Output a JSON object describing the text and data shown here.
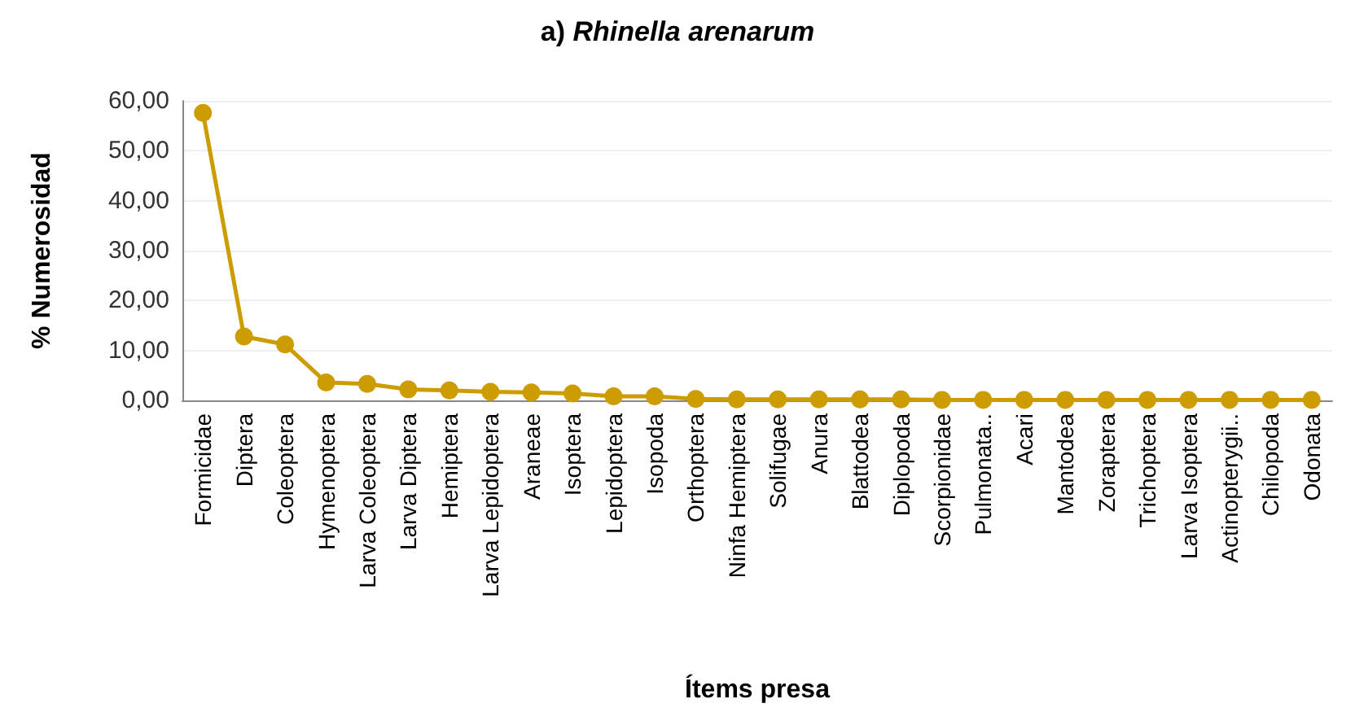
{
  "chart_data": {
    "type": "line",
    "title": "a) Rhinella arenarum",
    "xlabel": "Ítems presa",
    "ylabel": "% Numerosidad",
    "categories": [
      "Formicidae",
      "Diptera",
      "Coleoptera",
      "Hymenoptera",
      "Larva Coleoptera",
      "Larva Diptera",
      "Hemiptera",
      "Larva Lepidoptera",
      "Araneae",
      "Isoptera",
      "Lepidoptera",
      "Isopoda",
      "Orthoptera",
      "Ninfa Hemiptera",
      "Solifugae",
      "Anura",
      "Blattodea",
      "Diplopoda",
      "Scorpionidae",
      "Pulmonata..",
      "Acari",
      "Mantodea",
      "Zoraptera",
      "Trichoptera",
      "Larva Isoptera",
      "Actinopterygii..",
      "Chilopoda",
      "Odonata"
    ],
    "series": [
      {
        "color": "#cc9c00",
        "values": [
          57.6,
          12.8,
          11.2,
          3.6,
          3.3,
          2.2,
          2.0,
          1.7,
          1.6,
          1.4,
          0.8,
          0.8,
          0.3,
          0.2,
          0.2,
          0.2,
          0.2,
          0.2,
          0.1,
          0.1,
          0.1,
          0.1,
          0.1,
          0.1,
          0.1,
          0.1,
          0.1,
          0.1
        ]
      }
    ],
    "ylim": [
      0,
      60
    ],
    "yticks": [
      {
        "value": 0,
        "label": "0,00"
      },
      {
        "value": 10,
        "label": "10,00"
      },
      {
        "value": 20,
        "label": "20,00"
      },
      {
        "value": 30,
        "label": "30,00"
      },
      {
        "value": 40,
        "label": "40,00"
      },
      {
        "value": 50,
        "label": "50,00"
      },
      {
        "value": 60,
        "label": "60,00"
      }
    ],
    "grid": "y",
    "marker": "circle",
    "line_style": "solid"
  }
}
